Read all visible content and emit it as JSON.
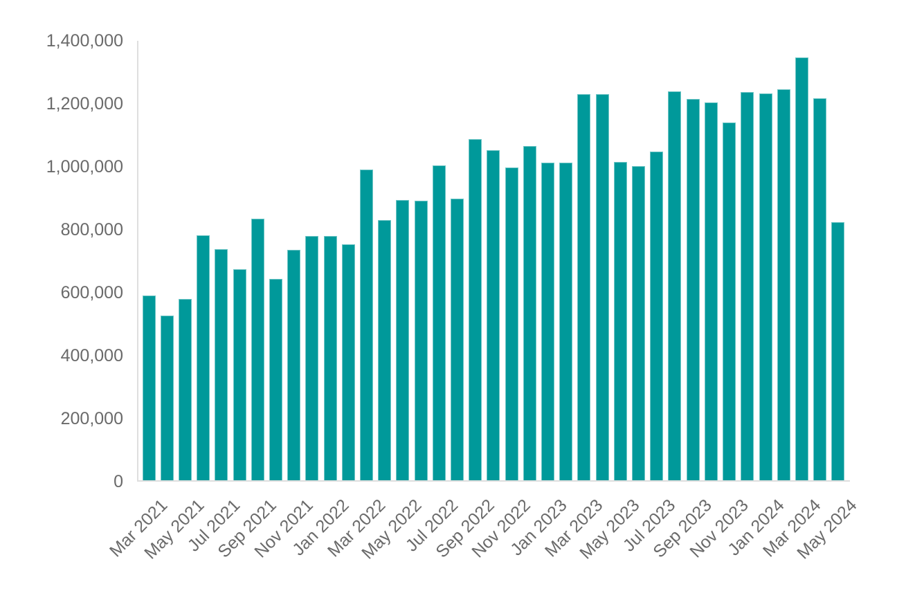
{
  "chart_data": {
    "type": "bar",
    "x": [
      "Mar 2021",
      "Apr 2021",
      "May 2021",
      "Jun 2021",
      "Jul 2021",
      "Aug 2021",
      "Sep 2021",
      "Oct 2021",
      "Nov 2021",
      "Dec 2021",
      "Jan 2022",
      "Feb 2022",
      "Mar 2022",
      "Apr 2022",
      "May 2022",
      "Jun 2022",
      "Jul 2022",
      "Aug 2022",
      "Sep 2022",
      "Oct 2022",
      "Nov 2022",
      "Dec 2022",
      "Jan 2023",
      "Feb 2023",
      "Mar 2023",
      "Apr 2023",
      "May 2023",
      "Jun 2023",
      "Jul 2023",
      "Aug 2023",
      "Sep 2023",
      "Oct 2023",
      "Nov 2023",
      "Dec 2023",
      "Jan 2024",
      "Feb 2024",
      "Mar 2024",
      "Apr 2024",
      "May 2024"
    ],
    "values": [
      586000,
      523000,
      576000,
      778000,
      734000,
      670000,
      830000,
      639000,
      733000,
      775000,
      775000,
      750000,
      987000,
      827000,
      890000,
      888000,
      1001000,
      895000,
      1084000,
      1049000,
      994000,
      1062000,
      1008000,
      1008000,
      1226000,
      1227000,
      1012000,
      999000,
      1043000,
      1235000,
      1210000,
      1201000,
      1136000,
      1234000,
      1228000,
      1241000,
      1342000,
      1213000,
      819000
    ],
    "x_tick_labels": [
      "Mar 2021",
      "May 2021",
      "Jul 2021",
      "Sep 2021",
      "Nov 2021",
      "Jan 2022",
      "Mar 2022",
      "May 2022",
      "Jul 2022",
      "Sep 2022",
      "Nov 2022",
      "Jan 2023",
      "Mar 2023",
      "May 2023",
      "Jul 2023",
      "Sep 2023",
      "Nov 2023",
      "Jan 2024",
      "Mar 2024",
      "May 2024"
    ],
    "x_label_every": 2,
    "y_tick_labels": [
      "0",
      "200,000",
      "400,000",
      "600,000",
      "800,000",
      "1,000,000",
      "1,200,000",
      "1,400,000"
    ],
    "y_tick_step": 200000,
    "ylim": [
      0,
      1400000
    ],
    "grid": false,
    "legend_position": "none",
    "title": "",
    "xlabel": "",
    "ylabel": "",
    "colors": {
      "bar": "#00999A",
      "axis_line": "#dedede",
      "tick_text": "#6a6a6a",
      "background": "#ffffff"
    }
  }
}
